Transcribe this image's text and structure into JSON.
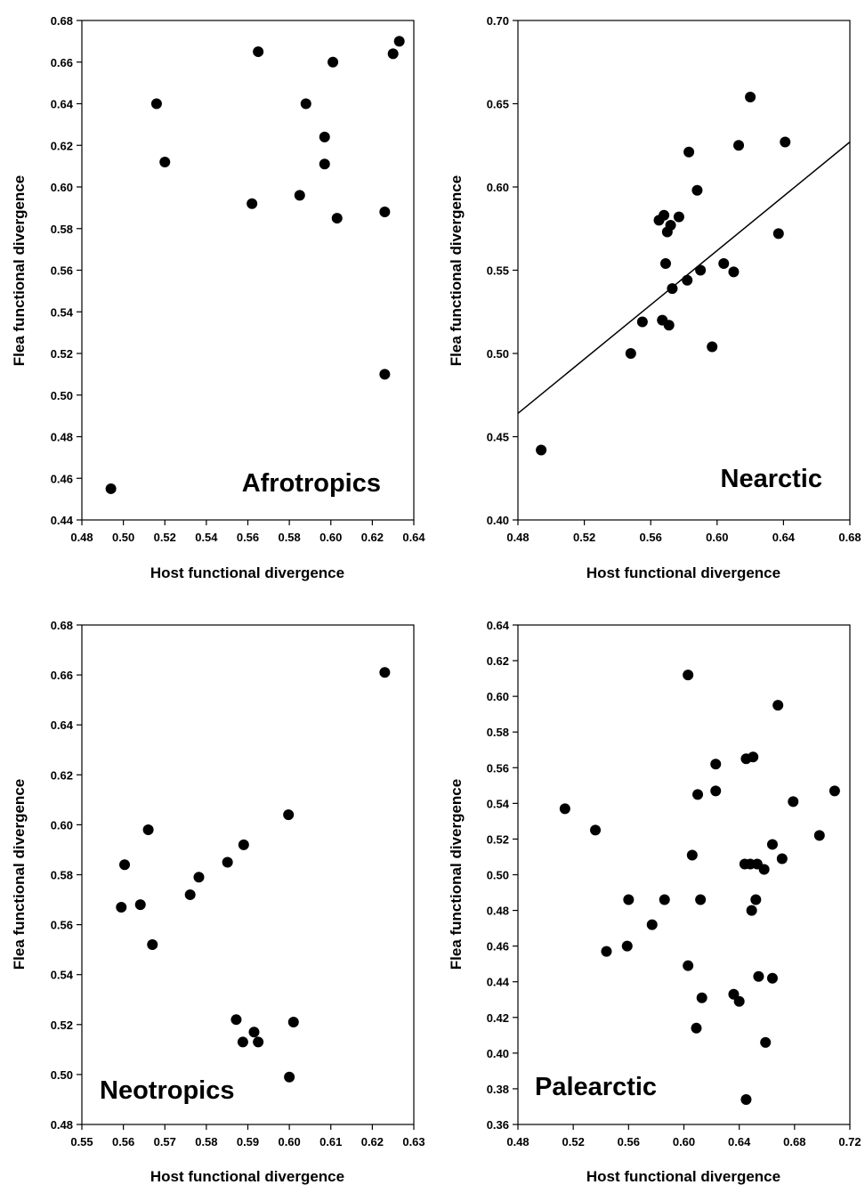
{
  "chart_data": [
    {
      "type": "scatter",
      "xlabel": "Host functional divergence",
      "ylabel": "Flea functional divergence",
      "annotation": "Afrotropics",
      "xlim": [
        0.48,
        0.64
      ],
      "ylim": [
        0.44,
        0.68
      ],
      "xticks": [
        "0.48",
        "0.50",
        "0.52",
        "0.54",
        "0.56",
        "0.58",
        "0.60",
        "0.62",
        "0.64"
      ],
      "yticks": [
        "0.44",
        "0.46",
        "0.48",
        "0.50",
        "0.52",
        "0.54",
        "0.56",
        "0.58",
        "0.60",
        "0.62",
        "0.64",
        "0.66",
        "0.68"
      ],
      "points": [
        [
          0.494,
          0.455
        ],
        [
          0.516,
          0.64
        ],
        [
          0.52,
          0.612
        ],
        [
          0.562,
          0.592
        ],
        [
          0.565,
          0.665
        ],
        [
          0.585,
          0.596
        ],
        [
          0.588,
          0.64
        ],
        [
          0.597,
          0.624
        ],
        [
          0.597,
          0.611
        ],
        [
          0.601,
          0.66
        ],
        [
          0.603,
          0.585
        ],
        [
          0.626,
          0.588
        ],
        [
          0.626,
          0.51
        ],
        [
          0.63,
          0.664
        ],
        [
          0.633,
          0.67
        ]
      ]
    },
    {
      "type": "scatter",
      "xlabel": "Host functional divergence",
      "ylabel": "Flea functional divergence",
      "annotation": "Nearctic",
      "xlim": [
        0.48,
        0.68
      ],
      "ylim": [
        0.4,
        0.7
      ],
      "xticks": [
        "0.48",
        "0.52",
        "0.56",
        "0.60",
        "0.64",
        "0.68"
      ],
      "yticks": [
        "0.40",
        "0.45",
        "0.50",
        "0.55",
        "0.60",
        "0.65",
        "0.70"
      ],
      "trendline": [
        [
          0.48,
          0.464
        ],
        [
          0.68,
          0.627
        ]
      ],
      "points": [
        [
          0.494,
          0.442
        ],
        [
          0.548,
          0.5
        ],
        [
          0.555,
          0.519
        ],
        [
          0.565,
          0.58
        ],
        [
          0.567,
          0.52
        ],
        [
          0.568,
          0.583
        ],
        [
          0.569,
          0.554
        ],
        [
          0.57,
          0.573
        ],
        [
          0.571,
          0.517
        ],
        [
          0.572,
          0.577
        ],
        [
          0.573,
          0.539
        ],
        [
          0.577,
          0.582
        ],
        [
          0.582,
          0.544
        ],
        [
          0.583,
          0.621
        ],
        [
          0.588,
          0.598
        ],
        [
          0.59,
          0.55
        ],
        [
          0.597,
          0.504
        ],
        [
          0.604,
          0.554
        ],
        [
          0.61,
          0.549
        ],
        [
          0.613,
          0.625
        ],
        [
          0.62,
          0.654
        ],
        [
          0.637,
          0.572
        ],
        [
          0.641,
          0.627
        ]
      ]
    },
    {
      "type": "scatter",
      "xlabel": "Host functional divergence",
      "ylabel": "Flea functional divergence",
      "annotation": "Neotropics",
      "xlim": [
        0.55,
        0.63
      ],
      "ylim": [
        0.48,
        0.68
      ],
      "xticks": [
        "0.55",
        "0.56",
        "0.57",
        "0.58",
        "0.59",
        "0.60",
        "0.61",
        "0.62",
        "0.63"
      ],
      "yticks": [
        "0.48",
        "0.50",
        "0.52",
        "0.54",
        "0.56",
        "0.58",
        "0.60",
        "0.62",
        "0.64",
        "0.66",
        "0.68"
      ],
      "points": [
        [
          0.5595,
          0.567
        ],
        [
          0.5603,
          0.584
        ],
        [
          0.5641,
          0.568
        ],
        [
          0.566,
          0.598
        ],
        [
          0.567,
          0.552
        ],
        [
          0.5761,
          0.572
        ],
        [
          0.5782,
          0.579
        ],
        [
          0.5851,
          0.585
        ],
        [
          0.5872,
          0.522
        ],
        [
          0.5888,
          0.513
        ],
        [
          0.589,
          0.592
        ],
        [
          0.5915,
          0.517
        ],
        [
          0.5925,
          0.513
        ],
        [
          0.5998,
          0.604
        ],
        [
          0.6,
          0.499
        ],
        [
          0.601,
          0.521
        ],
        [
          0.623,
          0.661
        ]
      ]
    },
    {
      "type": "scatter",
      "xlabel": "Host functional divergence",
      "ylabel": "Flea functional divergence",
      "annotation": "Palearctic",
      "xlim": [
        0.48,
        0.72
      ],
      "ylim": [
        0.36,
        0.64
      ],
      "xticks": [
        "0.48",
        "0.52",
        "0.56",
        "0.60",
        "0.64",
        "0.68",
        "0.72"
      ],
      "yticks": [
        "0.36",
        "0.38",
        "0.40",
        "0.42",
        "0.44",
        "0.46",
        "0.48",
        "0.50",
        "0.52",
        "0.54",
        "0.56",
        "0.58",
        "0.60",
        "0.62",
        "0.64"
      ],
      "points": [
        [
          0.514,
          0.537
        ],
        [
          0.536,
          0.525
        ],
        [
          0.544,
          0.457
        ],
        [
          0.559,
          0.46
        ],
        [
          0.56,
          0.486
        ],
        [
          0.577,
          0.472
        ],
        [
          0.586,
          0.486
        ],
        [
          0.603,
          0.612
        ],
        [
          0.603,
          0.449
        ],
        [
          0.606,
          0.511
        ],
        [
          0.609,
          0.414
        ],
        [
          0.61,
          0.545
        ],
        [
          0.612,
          0.486
        ],
        [
          0.613,
          0.431
        ],
        [
          0.623,
          0.562
        ],
        [
          0.623,
          0.547
        ],
        [
          0.636,
          0.433
        ],
        [
          0.64,
          0.429
        ],
        [
          0.644,
          0.506
        ],
        [
          0.645,
          0.565
        ],
        [
          0.645,
          0.374
        ],
        [
          0.648,
          0.506
        ],
        [
          0.649,
          0.48
        ],
        [
          0.65,
          0.566
        ],
        [
          0.652,
          0.486
        ],
        [
          0.653,
          0.506
        ],
        [
          0.654,
          0.443
        ],
        [
          0.658,
          0.503
        ],
        [
          0.659,
          0.406
        ],
        [
          0.664,
          0.517
        ],
        [
          0.664,
          0.442
        ],
        [
          0.668,
          0.595
        ],
        [
          0.671,
          0.509
        ],
        [
          0.679,
          0.541
        ],
        [
          0.698,
          0.522
        ],
        [
          0.709,
          0.547
        ]
      ]
    }
  ]
}
